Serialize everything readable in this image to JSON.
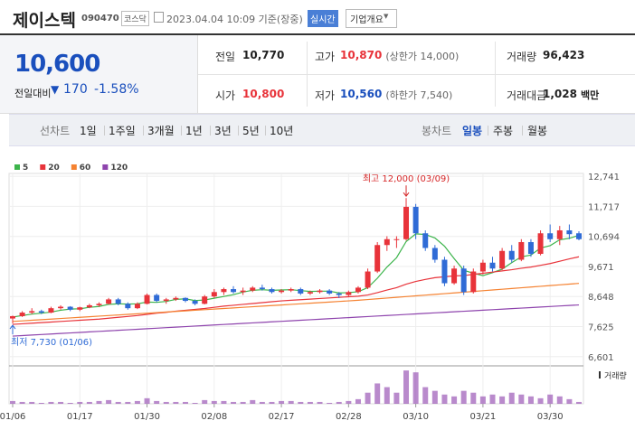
{
  "header": {
    "name": "제이스텍",
    "code": "090470",
    "market": "코스닥",
    "timestamp": "2023.04.04 10:09 기준(장중)",
    "realtime": "실시간",
    "company_info": "기업개요"
  },
  "quote": {
    "price": "10,600",
    "change_label": "전일대비",
    "change": "170",
    "change_rate": "-1.58%"
  },
  "stats": [
    {
      "label": "전일",
      "value": "10,770"
    },
    {
      "label": "고가",
      "value": "10,870",
      "note": "(상한가 14,000)"
    },
    {
      "label": "거래량",
      "value": "96,423"
    },
    {
      "label": "시가",
      "value": "10,800"
    },
    {
      "label": "저가",
      "value": "10,560",
      "note": "(하한가 7,540)"
    },
    {
      "label": "거래대금",
      "value": "1,028",
      "unit": "백만"
    }
  ],
  "line_tabs": {
    "label": "선차트",
    "items": [
      "1일",
      "1주일",
      "3개월",
      "1년",
      "3년",
      "5년",
      "10년"
    ]
  },
  "candle_tabs": {
    "label": "봉차트",
    "items": [
      "일봉",
      "주봉",
      "월봉"
    ]
  },
  "chart_data": {
    "type": "candlestick",
    "categories": [
      "01/06",
      null,
      null,
      null,
      null,
      null,
      null,
      "01/17",
      null,
      null,
      null,
      null,
      null,
      null,
      "01/30",
      null,
      null,
      null,
      null,
      null,
      null,
      "02/08",
      null,
      null,
      null,
      null,
      null,
      null,
      "02/17",
      null,
      null,
      null,
      null,
      null,
      null,
      "02/28",
      null,
      null,
      null,
      null,
      null,
      null,
      "03/10",
      null,
      null,
      null,
      null,
      null,
      null,
      "03/21",
      null,
      null,
      null,
      null,
      null,
      null,
      "03/30",
      null,
      null,
      null
    ],
    "open": [
      7900,
      7980,
      8100,
      8150,
      8100,
      8250,
      8300,
      8200,
      8280,
      8350,
      8400,
      8550,
      8400,
      8250,
      8400,
      8700,
      8500,
      8550,
      8600,
      8500,
      8400,
      8650,
      8800,
      8900,
      8800,
      8850,
      8950,
      8900,
      8800,
      8850,
      8900,
      8750,
      8800,
      8850,
      8750,
      8700,
      8800,
      8950,
      9500,
      10400,
      10600,
      10600,
      11700,
      10800,
      10300,
      9900,
      9100,
      9600,
      8800,
      9500,
      9800,
      9600,
      10200,
      9900,
      10500,
      10100,
      10800,
      10600,
      10900,
      10800
    ],
    "high": [
      8000,
      8150,
      8250,
      8200,
      8300,
      8350,
      8320,
      8300,
      8400,
      8450,
      8600,
      8600,
      8450,
      8450,
      8750,
      8750,
      8600,
      8650,
      8620,
      8550,
      8700,
      8900,
      8950,
      9000,
      8950,
      9000,
      9050,
      8950,
      8900,
      8950,
      8950,
      8850,
      8900,
      8900,
      8800,
      8850,
      9000,
      9600,
      10500,
      10700,
      10700,
      12000,
      11800,
      10900,
      10400,
      10000,
      9700,
      9700,
      9600,
      9900,
      10000,
      10300,
      10400,
      10600,
      10600,
      10900,
      11100,
      11050,
      11100,
      10870
    ],
    "low": [
      7730,
      7950,
      8050,
      8050,
      8080,
      8200,
      8150,
      8150,
      8250,
      8300,
      8380,
      8350,
      8200,
      8220,
      8380,
      8450,
      8400,
      8500,
      8450,
      8350,
      8380,
      8600,
      8700,
      8750,
      8700,
      8800,
      8850,
      8750,
      8750,
      8800,
      8700,
      8700,
      8750,
      8700,
      8600,
      8650,
      8750,
      8900,
      9450,
      10200,
      10300,
      10550,
      10600,
      10200,
      9800,
      9000,
      9050,
      8700,
      8750,
      9400,
      9500,
      9550,
      9800,
      9850,
      10000,
      10050,
      10500,
      10400,
      10600,
      10560
    ],
    "close": [
      7980,
      8100,
      8150,
      8100,
      8250,
      8300,
      8200,
      8280,
      8350,
      8400,
      8550,
      8400,
      8250,
      8400,
      8700,
      8500,
      8550,
      8600,
      8500,
      8400,
      8650,
      8800,
      8900,
      8800,
      8850,
      8950,
      8900,
      8800,
      8850,
      8900,
      8750,
      8800,
      8850,
      8750,
      8700,
      8800,
      8950,
      9500,
      10400,
      10600,
      10600,
      11700,
      10800,
      10300,
      9900,
      9100,
      9600,
      8800,
      9500,
      9800,
      9600,
      10200,
      9900,
      10500,
      10100,
      10800,
      10600,
      10900,
      10770,
      10600
    ],
    "up_color": "#e8333a",
    "down_color": "#2f6bd6",
    "series": [
      {
        "name": "5",
        "color": "#3cb44b",
        "values": [
          7950,
          8000,
          8050,
          8080,
          8120,
          8180,
          8220,
          8230,
          8280,
          8310,
          8380,
          8400,
          8390,
          8400,
          8460,
          8450,
          8480,
          8550,
          8570,
          8510,
          8530,
          8590,
          8650,
          8710,
          8800,
          8860,
          8880,
          8860,
          8870,
          8880,
          8850,
          8820,
          8830,
          8830,
          8770,
          8780,
          8810,
          8950,
          9270,
          9650,
          9970,
          10520,
          10780,
          10760,
          10640,
          10360,
          9940,
          9540,
          9440,
          9360,
          9460,
          9580,
          9800,
          10000,
          10060,
          10300,
          10380,
          10580,
          10630,
          10730
        ]
      },
      {
        "name": "20",
        "color": "#e8333a",
        "values": [
          7700,
          7720,
          7740,
          7760,
          7780,
          7800,
          7820,
          7840,
          7860,
          7880,
          7910,
          7940,
          7970,
          8000,
          8040,
          8080,
          8110,
          8150,
          8180,
          8210,
          8240,
          8280,
          8320,
          8350,
          8380,
          8410,
          8440,
          8470,
          8500,
          8520,
          8540,
          8560,
          8580,
          8600,
          8620,
          8640,
          8660,
          8700,
          8780,
          8870,
          8950,
          9070,
          9160,
          9230,
          9290,
          9320,
          9350,
          9360,
          9400,
          9440,
          9480,
          9520,
          9560,
          9610,
          9650,
          9710,
          9770,
          9850,
          9930,
          10000
        ]
      },
      {
        "name": "60",
        "color": "#f58231",
        "values": [
          7800,
          7820,
          7840,
          7860,
          7880,
          7900,
          7920,
          7940,
          7960,
          7980,
          8000,
          8020,
          8040,
          8060,
          8080,
          8100,
          8120,
          8140,
          8160,
          8180,
          8200,
          8220,
          8240,
          8260,
          8280,
          8300,
          8320,
          8340,
          8360,
          8380,
          8400,
          8420,
          8440,
          8460,
          8480,
          8500,
          8520,
          8545,
          8570,
          8595,
          8620,
          8645,
          8670,
          8695,
          8720,
          8745,
          8770,
          8795,
          8820,
          8845,
          8870,
          8895,
          8920,
          8945,
          8970,
          8995,
          9020,
          9045,
          9070,
          9095
        ]
      },
      {
        "name": "120",
        "color": "#8e44ad",
        "values": [
          7300,
          7318,
          7336,
          7354,
          7372,
          7390,
          7408,
          7426,
          7444,
          7462,
          7480,
          7498,
          7516,
          7534,
          7552,
          7570,
          7588,
          7606,
          7624,
          7642,
          7660,
          7678,
          7696,
          7714,
          7732,
          7750,
          7768,
          7786,
          7804,
          7822,
          7840,
          7858,
          7876,
          7894,
          7912,
          7930,
          7948,
          7966,
          7984,
          8002,
          8020,
          8038,
          8056,
          8074,
          8092,
          8110,
          8128,
          8146,
          8164,
          8182,
          8200,
          8218,
          8236,
          8254,
          8272,
          8290,
          8308,
          8326,
          8344,
          8362
        ]
      }
    ],
    "ylim": [
      6380,
      12960
    ],
    "yticks": [
      {
        "value": 12741,
        "label": "12,741"
      },
      {
        "value": 11717,
        "label": "11,717"
      },
      {
        "value": 10694,
        "label": "10,694"
      },
      {
        "value": 9671,
        "label": "9,671"
      },
      {
        "value": 8648,
        "label": "8,648"
      },
      {
        "value": 7625,
        "label": "7,625"
      },
      {
        "value": 6601,
        "label": "6,601"
      }
    ],
    "annotations": [
      {
        "text": "최고 12,000 (03/09)",
        "value": 12000,
        "color": "#d62728",
        "kind": "high"
      },
      {
        "text": "최저 7,730 (01/06)",
        "value": 7730,
        "color": "#2f6bd6",
        "kind": "low"
      }
    ],
    "volume": {
      "label": "거래량",
      "color": "#9b59b6",
      "ylim": [
        0,
        1600000
      ],
      "values": [
        120000,
        80000,
        80000,
        40000,
        80000,
        80000,
        40000,
        80000,
        80000,
        120000,
        160000,
        80000,
        80000,
        120000,
        240000,
        120000,
        80000,
        80000,
        80000,
        40000,
        160000,
        120000,
        120000,
        80000,
        80000,
        160000,
        80000,
        80000,
        120000,
        120000,
        80000,
        80000,
        80000,
        40000,
        80000,
        120000,
        200000,
        480000,
        880000,
        720000,
        480000,
        1440000,
        1360000,
        720000,
        560000,
        400000,
        320000,
        560000,
        480000,
        320000,
        400000,
        320000,
        480000,
        400000,
        320000,
        240000,
        400000,
        320000,
        200000,
        80000
      ]
    }
  }
}
